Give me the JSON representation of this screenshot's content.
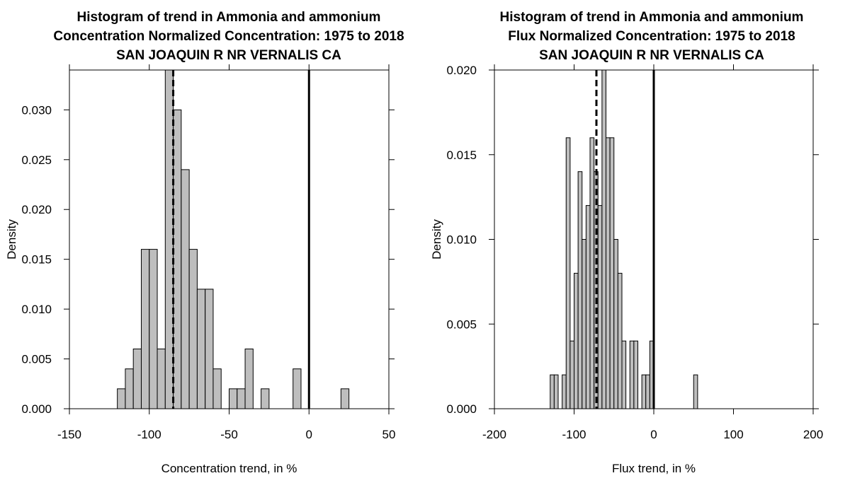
{
  "chart_data": [
    {
      "type": "bar",
      "title": [
        "Histogram of trend in Ammonia and ammonium",
        "Concentration Normalized Concentration: 1975 to 2018",
        "SAN JOAQUIN R NR VERNALIS CA"
      ],
      "xlabel": "Concentration trend, in %",
      "ylabel": "Density",
      "xlim": [
        -150,
        50
      ],
      "ylim": [
        0,
        0.034
      ],
      "xticks": [
        -150,
        -100,
        -50,
        0,
        50
      ],
      "yticks": [
        0,
        0.005,
        0.01,
        0.015,
        0.02,
        0.025,
        0.03
      ],
      "ytick_labels": [
        "0.000",
        "0.005",
        "0.010",
        "0.015",
        "0.020",
        "0.025",
        "0.030"
      ],
      "bin_width": 5,
      "bins": [
        {
          "x0": -120,
          "density": 0.002
        },
        {
          "x0": -115,
          "density": 0.004
        },
        {
          "x0": -110,
          "density": 0.006
        },
        {
          "x0": -105,
          "density": 0.016
        },
        {
          "x0": -100,
          "density": 0.016
        },
        {
          "x0": -95,
          "density": 0.006
        },
        {
          "x0": -90,
          "density": 0.034
        },
        {
          "x0": -85,
          "density": 0.03
        },
        {
          "x0": -80,
          "density": 0.024
        },
        {
          "x0": -75,
          "density": 0.016
        },
        {
          "x0": -70,
          "density": 0.012
        },
        {
          "x0": -65,
          "density": 0.012
        },
        {
          "x0": -60,
          "density": 0.004
        },
        {
          "x0": -50,
          "density": 0.002
        },
        {
          "x0": -45,
          "density": 0.002
        },
        {
          "x0": -40,
          "density": 0.006
        },
        {
          "x0": -30,
          "density": 0.002
        },
        {
          "x0": -10,
          "density": 0.004
        },
        {
          "x0": 20,
          "density": 0.002
        }
      ],
      "reference_lines": [
        {
          "x": -85,
          "style": "dashed"
        },
        {
          "x": 0,
          "style": "solid"
        }
      ]
    },
    {
      "type": "bar",
      "title": [
        "Histogram of trend in Ammonia and ammonium",
        "Flux Normalized Concentration: 1975 to 2018",
        "SAN JOAQUIN R NR VERNALIS CA"
      ],
      "xlabel": "Flux trend, in %",
      "ylabel": "Density",
      "xlim": [
        -200,
        200
      ],
      "ylim": [
        0,
        0.02
      ],
      "xticks": [
        -200,
        -100,
        0,
        100,
        200
      ],
      "yticks": [
        0,
        0.005,
        0.01,
        0.015,
        0.02
      ],
      "ytick_labels": [
        "0.000",
        "0.005",
        "0.010",
        "0.015",
        "0.020"
      ],
      "bin_width": 5,
      "bins": [
        {
          "x0": -130,
          "density": 0.002
        },
        {
          "x0": -125,
          "density": 0.002
        },
        {
          "x0": -115,
          "density": 0.002
        },
        {
          "x0": -110,
          "density": 0.016
        },
        {
          "x0": -105,
          "density": 0.004
        },
        {
          "x0": -100,
          "density": 0.008
        },
        {
          "x0": -95,
          "density": 0.014
        },
        {
          "x0": -90,
          "density": 0.01
        },
        {
          "x0": -85,
          "density": 0.012
        },
        {
          "x0": -80,
          "density": 0.016
        },
        {
          "x0": -75,
          "density": 0.014
        },
        {
          "x0": -70,
          "density": 0.012
        },
        {
          "x0": -65,
          "density": 0.022
        },
        {
          "x0": -60,
          "density": 0.016
        },
        {
          "x0": -55,
          "density": 0.016
        },
        {
          "x0": -50,
          "density": 0.01
        },
        {
          "x0": -45,
          "density": 0.008
        },
        {
          "x0": -40,
          "density": 0.004
        },
        {
          "x0": -30,
          "density": 0.004
        },
        {
          "x0": -25,
          "density": 0.004
        },
        {
          "x0": -15,
          "density": 0.002
        },
        {
          "x0": -10,
          "density": 0.002
        },
        {
          "x0": -5,
          "density": 0.004
        },
        {
          "x0": 50,
          "density": 0.002
        }
      ],
      "reference_lines": [
        {
          "x": -72,
          "style": "dashed"
        },
        {
          "x": 0,
          "style": "solid"
        }
      ]
    }
  ]
}
